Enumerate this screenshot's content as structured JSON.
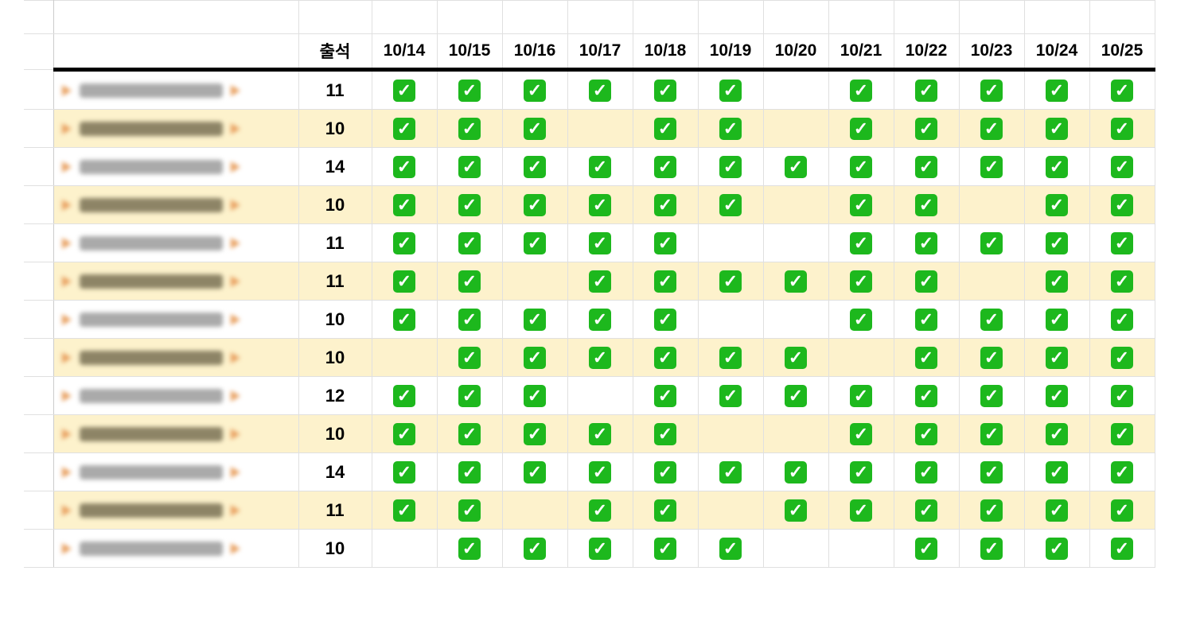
{
  "header": {
    "attendance_label": "출석",
    "dates": [
      "10/14",
      "10/15",
      "10/16",
      "10/17",
      "10/18",
      "10/19",
      "10/20",
      "10/21",
      "10/22",
      "10/23",
      "10/24",
      "10/25"
    ]
  },
  "check_icon": "white-check-mark-on-green",
  "colors": {
    "alt_row": "#fdf2cc",
    "check": "#1db81d"
  },
  "rows": [
    {
      "attendance": "11",
      "checks": [
        1,
        1,
        1,
        1,
        1,
        1,
        0,
        1,
        1,
        1,
        1,
        1
      ]
    },
    {
      "attendance": "10",
      "checks": [
        1,
        1,
        1,
        0,
        1,
        1,
        0,
        1,
        1,
        1,
        1,
        1
      ]
    },
    {
      "attendance": "14",
      "checks": [
        1,
        1,
        1,
        1,
        1,
        1,
        1,
        1,
        1,
        1,
        1,
        1
      ]
    },
    {
      "attendance": "10",
      "checks": [
        1,
        1,
        1,
        1,
        1,
        1,
        0,
        1,
        1,
        0,
        1,
        1
      ]
    },
    {
      "attendance": "11",
      "checks": [
        1,
        1,
        1,
        1,
        1,
        0,
        0,
        1,
        1,
        1,
        1,
        1
      ]
    },
    {
      "attendance": "11",
      "checks": [
        1,
        1,
        0,
        1,
        1,
        1,
        1,
        1,
        1,
        0,
        1,
        1
      ]
    },
    {
      "attendance": "10",
      "checks": [
        1,
        1,
        1,
        1,
        1,
        0,
        0,
        1,
        1,
        1,
        1,
        1
      ]
    },
    {
      "attendance": "10",
      "checks": [
        0,
        1,
        1,
        1,
        1,
        1,
        1,
        0,
        1,
        1,
        1,
        1
      ]
    },
    {
      "attendance": "12",
      "checks": [
        1,
        1,
        1,
        0,
        1,
        1,
        1,
        1,
        1,
        1,
        1,
        1
      ]
    },
    {
      "attendance": "10",
      "checks": [
        1,
        1,
        1,
        1,
        1,
        0,
        0,
        1,
        1,
        1,
        1,
        1
      ]
    },
    {
      "attendance": "14",
      "checks": [
        1,
        1,
        1,
        1,
        1,
        1,
        1,
        1,
        1,
        1,
        1,
        1
      ]
    },
    {
      "attendance": "11",
      "checks": [
        1,
        1,
        0,
        1,
        1,
        0,
        1,
        1,
        1,
        1,
        1,
        1
      ]
    },
    {
      "attendance": "10",
      "checks": [
        0,
        1,
        1,
        1,
        1,
        1,
        0,
        0,
        1,
        1,
        1,
        1
      ]
    }
  ]
}
